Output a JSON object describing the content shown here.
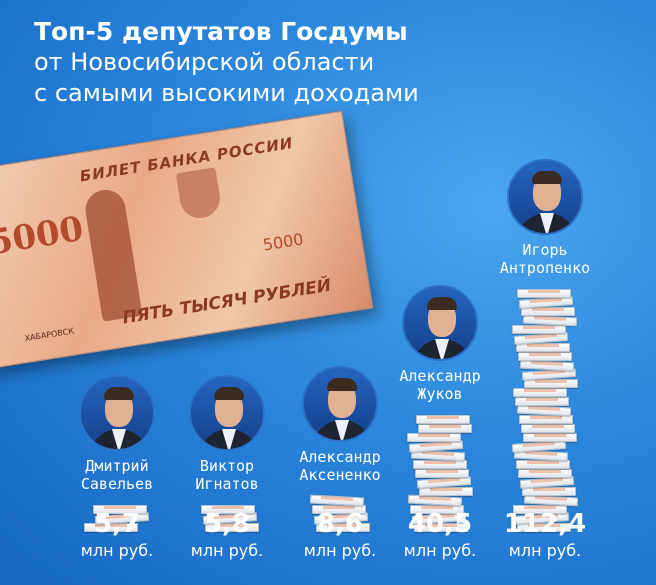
{
  "title": {
    "line1": "Топ-5 депутатов Госдумы",
    "line2": "от Новосибирской области",
    "line3": "с самыми высокими доходами"
  },
  "banknote": {
    "header": "БИЛЕТ БАНКА РОССИИ",
    "denomination": "5000",
    "words": "ПЯТЬ ТЫСЯЧ РУБЛЕЙ",
    "city": "ХАБАРОВСК"
  },
  "chart_data": {
    "type": "bar",
    "unit": "млн руб.",
    "categories": [
      {
        "first": "Дмитрий",
        "last": "Савельев"
      },
      {
        "first": "Виктор",
        "last": "Игнатов"
      },
      {
        "first": "Александр",
        "last": "Аксененко"
      },
      {
        "first": "Александр",
        "last": "Жуков"
      },
      {
        "first": "Игорь",
        "last": "Антропенко"
      }
    ],
    "values": [
      5.7,
      5.8,
      8.6,
      40.5,
      112.4
    ],
    "labels": [
      "5,7",
      "5,8",
      "8,6",
      "40,5",
      "112,4"
    ]
  },
  "colors": {
    "background": "#2a86dc",
    "text": "#ffffff"
  }
}
